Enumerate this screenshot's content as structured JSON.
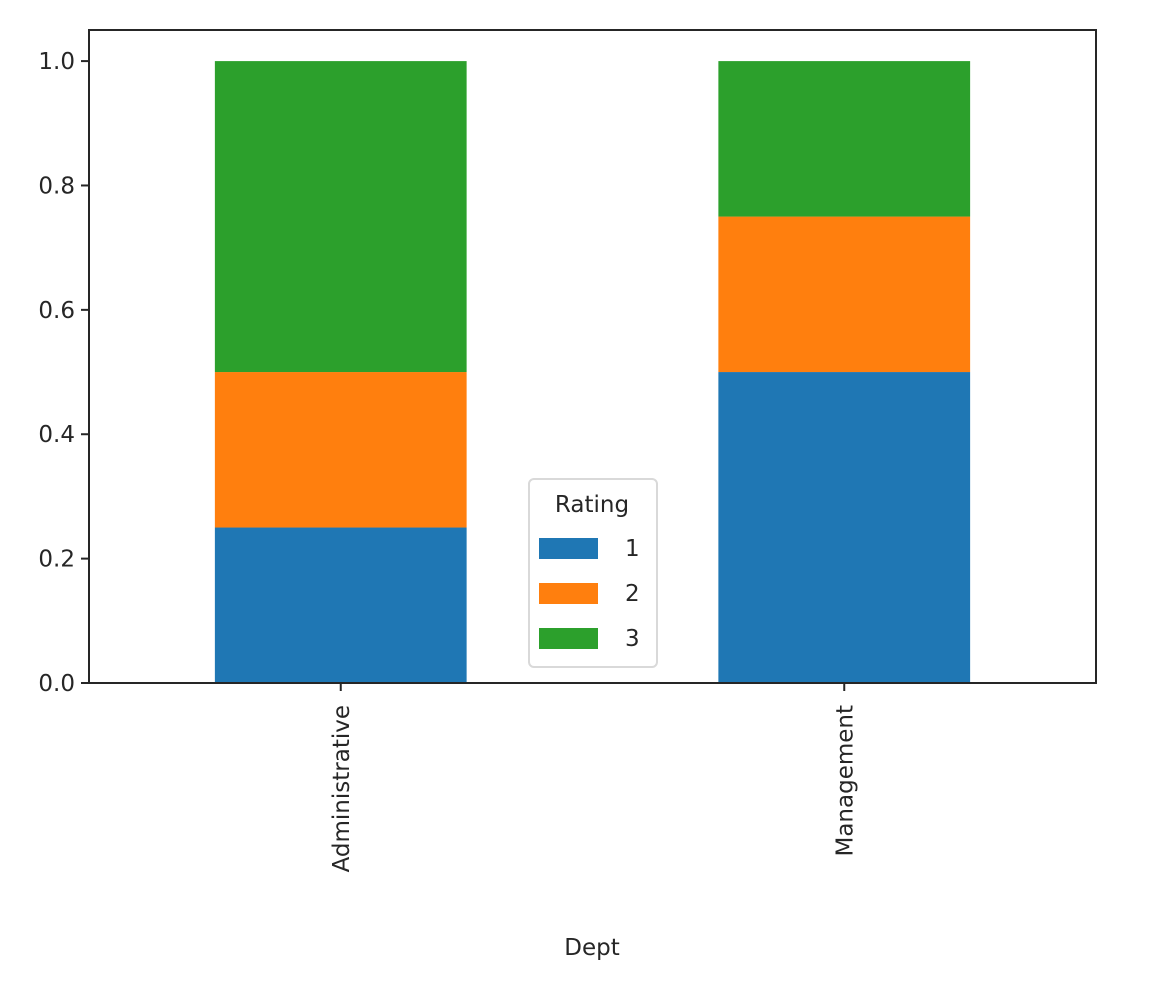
{
  "chart_data": {
    "type": "bar",
    "stacked": true,
    "categories": [
      "Administrative",
      "Management"
    ],
    "series": [
      {
        "name": "1",
        "values": [
          0.25,
          0.5
        ],
        "color": "#1f77b4"
      },
      {
        "name": "2",
        "values": [
          0.25,
          0.25
        ],
        "color": "#ff7f0e"
      },
      {
        "name": "3",
        "values": [
          0.5,
          0.25
        ],
        "color": "#2ca02c"
      }
    ],
    "xlabel": "Dept",
    "ylabel": "",
    "ylim": [
      0,
      1.05
    ],
    "yticks": [
      "0.0",
      "0.2",
      "0.4",
      "0.6",
      "0.8",
      "1.0"
    ],
    "ytick_values": [
      0,
      0.2,
      0.4,
      0.6,
      0.8,
      1.0
    ],
    "grid": false,
    "legend": {
      "title": "Rating",
      "placement": "lower-center"
    }
  }
}
